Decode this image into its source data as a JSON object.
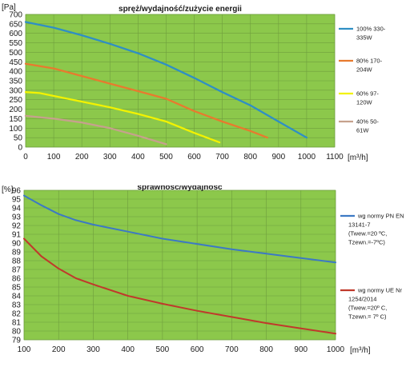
{
  "chart_data": [
    {
      "type": "line",
      "title": "spręż/wydajność/zużycie energii",
      "ylabel": "[Pa]",
      "xlabel": "[m³/h]",
      "xlim": [
        0,
        1100
      ],
      "ylim": [
        0,
        700
      ],
      "xticks": [
        0,
        100,
        200,
        300,
        400,
        500,
        600,
        700,
        800,
        900,
        1000,
        1100
      ],
      "yticks": [
        0,
        50,
        100,
        150,
        200,
        250,
        300,
        350,
        400,
        450,
        500,
        550,
        600,
        650,
        700
      ],
      "grid": true,
      "legend_position": "right",
      "plot_background": "#8cc84b",
      "series": [
        {
          "name": "100% 330-335W",
          "legend_lines": [
            "100% 330-",
            "335W"
          ],
          "color": "#2f8fc4",
          "x": [
            0,
            100,
            200,
            300,
            400,
            500,
            600,
            700,
            800,
            900,
            1000
          ],
          "y": [
            660,
            630,
            590,
            545,
            495,
            435,
            365,
            290,
            220,
            135,
            50
          ]
        },
        {
          "name": "80% 170-204W",
          "legend_lines": [
            "80% 170-",
            "204W"
          ],
          "color": "#e87a2e",
          "x": [
            0,
            100,
            200,
            300,
            400,
            500,
            600,
            700,
            800,
            860
          ],
          "y": [
            440,
            415,
            375,
            335,
            295,
            255,
            190,
            135,
            85,
            50
          ]
        },
        {
          "name": "60% 97-120W",
          "legend_lines": [
            "60% 97-",
            "120W"
          ],
          "color": "#f2f200",
          "x": [
            0,
            50,
            100,
            200,
            300,
            400,
            500,
            600,
            690
          ],
          "y": [
            290,
            285,
            270,
            240,
            210,
            175,
            135,
            75,
            25
          ]
        },
        {
          "name": "40% 50-61W",
          "legend_lines": [
            "40% 50-",
            "61W"
          ],
          "color": "#c6a18d",
          "x": [
            0,
            100,
            200,
            300,
            400,
            500
          ],
          "y": [
            165,
            150,
            130,
            100,
            60,
            15
          ]
        }
      ]
    },
    {
      "type": "line",
      "title": "sprawność/wydajność",
      "ylabel": "[%]",
      "xlabel": "[m³/h]",
      "xlim": [
        100,
        1000
      ],
      "ylim": [
        79,
        96
      ],
      "xticks": [
        100,
        200,
        300,
        400,
        500,
        600,
        700,
        800,
        900,
        1000
      ],
      "yticks": [
        79,
        80,
        81,
        82,
        83,
        84,
        85,
        86,
        87,
        88,
        89,
        90,
        91,
        92,
        93,
        94,
        95,
        96
      ],
      "grid": true,
      "legend_position": "right",
      "plot_background": "#8cc84b",
      "series": [
        {
          "name": "wg normy PN EN 13141-7 (Twew.=20 ºC, Tzewn.=-7ºC)",
          "legend_lines": [
            "wg normy PN EN",
            "13141-7",
            "(Twew.=20 ºC,",
            "Tzewn.=-7ºC)"
          ],
          "color": "#3c79c4",
          "x": [
            100,
            150,
            200,
            250,
            300,
            400,
            500,
            600,
            700,
            800,
            900,
            1000
          ],
          "y": [
            95.4,
            94.3,
            93.3,
            92.6,
            92.1,
            91.3,
            90.5,
            89.9,
            89.3,
            88.8,
            88.3,
            87.8
          ]
        },
        {
          "name": "wg normy UE Nr 1254/2014 (Twew.=20º C, Tzewn.= 7º C)",
          "legend_lines": [
            "wg normy UE Nr",
            "1254/2014",
            "(Twew.=20º C,",
            "Tzewn.= 7º C)"
          ],
          "color": "#c0392b",
          "x": [
            100,
            150,
            200,
            250,
            300,
            400,
            500,
            600,
            700,
            800,
            900,
            1000
          ],
          "y": [
            90.5,
            88.5,
            87.1,
            86.0,
            85.3,
            84.0,
            83.1,
            82.3,
            81.6,
            80.9,
            80.3,
            79.7
          ]
        }
      ]
    }
  ]
}
